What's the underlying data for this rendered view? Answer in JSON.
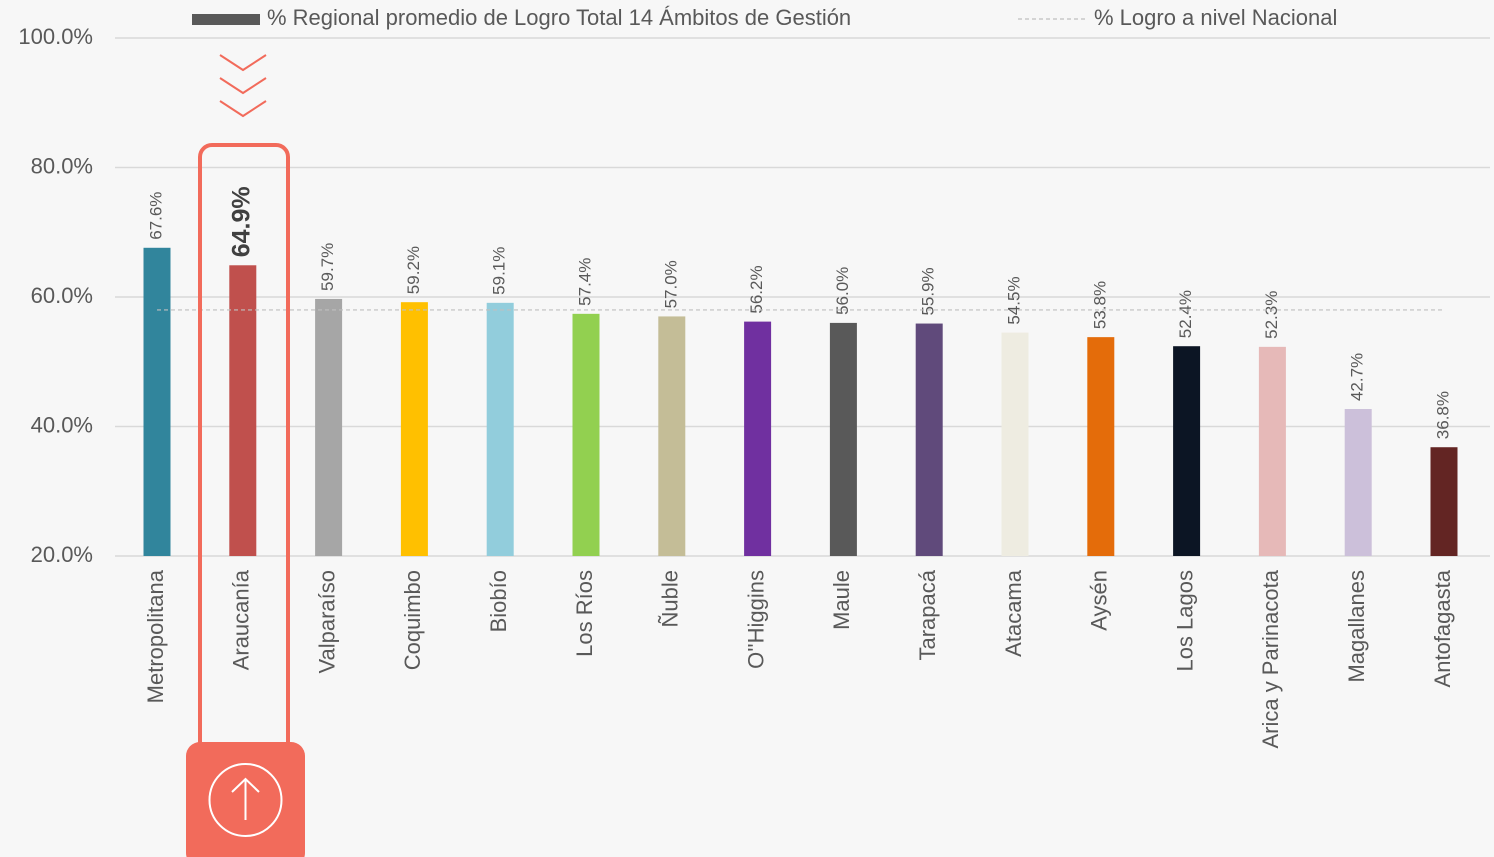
{
  "chart_data": {
    "type": "bar",
    "categories": [
      "Metropolitana",
      "Araucanía",
      "Valparaíso",
      "Coquimbo",
      "Biobío",
      "Los Ríos",
      "Ñuble",
      "O''Higgins",
      "Maule",
      "Tarapacá",
      "Atacama",
      "Aysén",
      "Los Lagos",
      "Arica y Parinacota",
      "Magallanes",
      "Antofagasta"
    ],
    "series": [
      {
        "name": "% Regional promedio de Logro Total 14 Ámbitos de Gestión",
        "color": "#595959",
        "values": [
          67.6,
          64.9,
          59.7,
          59.2,
          59.1,
          57.4,
          57.0,
          56.2,
          56.0,
          55.9,
          54.5,
          53.8,
          52.4,
          52.3,
          42.7,
          36.8
        ],
        "value_labels": [
          "67.6%",
          "64.9%",
          "59.7%",
          "59.2%",
          "59.1%",
          "57.4%",
          "57.0%",
          "56.2%",
          "56.0%",
          "55.9%",
          "54.5%",
          "53.8%",
          "52.4%",
          "52.3%",
          "42.7%",
          "36.8%"
        ],
        "colors": [
          "#31859c",
          "#c0504d",
          "#a6a6a6",
          "#ffc000",
          "#92cddc",
          "#92d050",
          "#c4bd97",
          "#7030a0",
          "#595959",
          "#604a7b",
          "#eeece1",
          "#e46c0a",
          "#0c1524",
          "#e6b9b8",
          "#ccc0da",
          "#632523"
        ]
      }
    ],
    "reference_line": {
      "name": "% Logro a nivel Nacional",
      "value": 58.0,
      "color": "#bfbfbf"
    },
    "highlight_index": 1,
    "ylim": [
      20,
      100
    ],
    "yticks": [
      {
        "value": 20,
        "label": "20.0%"
      },
      {
        "value": 40,
        "label": "40.0%"
      },
      {
        "value": 60,
        "label": "60.0%"
      },
      {
        "value": 80,
        "label": "80.0%"
      },
      {
        "value": 100,
        "label": "100.0%"
      }
    ],
    "grid": true
  }
}
